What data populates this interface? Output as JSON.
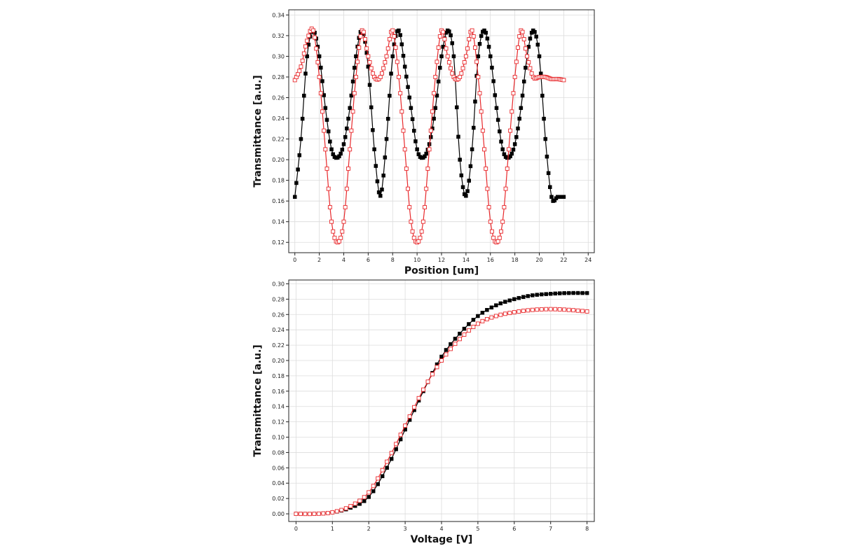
{
  "colors": {
    "series_black": "#000000",
    "series_red": "#e8282b",
    "marker_red_fill": "#ffffff",
    "grid": "#dcdcdc"
  },
  "chart_data": [
    {
      "type": "line",
      "xlabel": "Position [um]",
      "ylabel": "Transmittance [a.u.]",
      "xlim": [
        -0.5,
        24.5
      ],
      "ylim": [
        0.11,
        0.345
      ],
      "xticks": [
        0,
        2,
        4,
        6,
        8,
        10,
        12,
        14,
        16,
        18,
        20,
        22,
        24
      ],
      "yticks": [
        0.12,
        0.14,
        0.16,
        0.18,
        0.2,
        0.22,
        0.24,
        0.26,
        0.28,
        0.3,
        0.32,
        0.34
      ],
      "grid": true,
      "series": [
        {
          "marker": "filled-square",
          "color": "#000000",
          "x": [
            0.0,
            0.5,
            1.0,
            1.5,
            2.0,
            2.5,
            3.0,
            3.5,
            4.0,
            4.5,
            5.0,
            5.5,
            6.0,
            6.5,
            7.0,
            7.5,
            8.0,
            8.5,
            9.0,
            9.5,
            10.0,
            10.5,
            11.0,
            11.5,
            12.0,
            12.5,
            13.0,
            13.5,
            14.0,
            14.5,
            15.0,
            15.5,
            16.0,
            16.5,
            17.0,
            17.5,
            18.0,
            18.5,
            19.0,
            19.5,
            20.0,
            20.5,
            21.0,
            21.5,
            22.0
          ],
          "y": [
            0.164,
            0.22,
            0.3,
            0.325,
            0.3,
            0.25,
            0.21,
            0.202,
            0.215,
            0.25,
            0.3,
            0.325,
            0.29,
            0.21,
            0.165,
            0.22,
            0.3,
            0.325,
            0.29,
            0.25,
            0.21,
            0.202,
            0.215,
            0.25,
            0.3,
            0.325,
            0.3,
            0.2,
            0.165,
            0.21,
            0.3,
            0.325,
            0.3,
            0.25,
            0.21,
            0.202,
            0.215,
            0.25,
            0.3,
            0.325,
            0.3,
            0.22,
            0.164,
            0.164,
            0.164
          ]
        },
        {
          "marker": "open-square",
          "color": "#e8282b",
          "x": [
            0.0,
            0.5,
            1.0,
            1.5,
            2.0,
            2.5,
            3.0,
            3.5,
            4.0,
            4.5,
            5.0,
            5.5,
            6.0,
            6.5,
            7.0,
            7.5,
            8.0,
            8.5,
            9.0,
            9.5,
            10.0,
            10.5,
            11.0,
            11.5,
            12.0,
            12.5,
            13.0,
            13.5,
            14.0,
            14.5,
            15.0,
            15.5,
            16.0,
            16.5,
            17.0,
            17.5,
            18.0,
            18.5,
            19.0,
            19.5,
            20.0,
            20.5,
            21.0,
            21.5,
            22.0
          ],
          "y": [
            0.277,
            0.29,
            0.315,
            0.325,
            0.28,
            0.21,
            0.14,
            0.12,
            0.14,
            0.21,
            0.28,
            0.325,
            0.3,
            0.28,
            0.28,
            0.3,
            0.325,
            0.28,
            0.21,
            0.14,
            0.12,
            0.14,
            0.21,
            0.28,
            0.325,
            0.3,
            0.28,
            0.28,
            0.3,
            0.325,
            0.28,
            0.21,
            0.14,
            0.12,
            0.14,
            0.21,
            0.28,
            0.325,
            0.3,
            0.28,
            0.28,
            0.28,
            0.278,
            0.278,
            0.277
          ]
        }
      ]
    },
    {
      "type": "line",
      "xlabel": "Voltage [V]",
      "ylabel": "Transmittance [a.u.]",
      "xlim": [
        -0.2,
        8.2
      ],
      "ylim": [
        -0.01,
        0.305
      ],
      "xticks": [
        0,
        1,
        2,
        3,
        4,
        5,
        6,
        7,
        8
      ],
      "yticks": [
        0.0,
        0.02,
        0.04,
        0.06,
        0.08,
        0.1,
        0.12,
        0.14,
        0.16,
        0.18,
        0.2,
        0.22,
        0.24,
        0.26,
        0.28,
        0.3
      ],
      "grid": true,
      "series": [
        {
          "marker": "filled-square",
          "color": "#000000",
          "x": [
            0.0,
            0.5,
            1.0,
            1.5,
            2.0,
            2.5,
            3.0,
            3.5,
            4.0,
            4.5,
            5.0,
            5.5,
            6.0,
            6.5,
            7.0,
            7.5,
            8.0
          ],
          "y": [
            0.0,
            0.0,
            0.002,
            0.008,
            0.022,
            0.06,
            0.11,
            0.16,
            0.205,
            0.235,
            0.258,
            0.272,
            0.28,
            0.285,
            0.287,
            0.288,
            0.288
          ]
        },
        {
          "marker": "open-square",
          "color": "#e8282b",
          "x": [
            0.0,
            0.5,
            1.0,
            1.5,
            2.0,
            2.5,
            3.0,
            3.5,
            4.0,
            4.5,
            5.0,
            5.5,
            6.0,
            6.5,
            7.0,
            7.5,
            8.0
          ],
          "y": [
            0.0,
            0.0,
            0.002,
            0.01,
            0.028,
            0.068,
            0.115,
            0.162,
            0.2,
            0.228,
            0.248,
            0.258,
            0.263,
            0.266,
            0.267,
            0.266,
            0.264
          ]
        }
      ]
    }
  ]
}
